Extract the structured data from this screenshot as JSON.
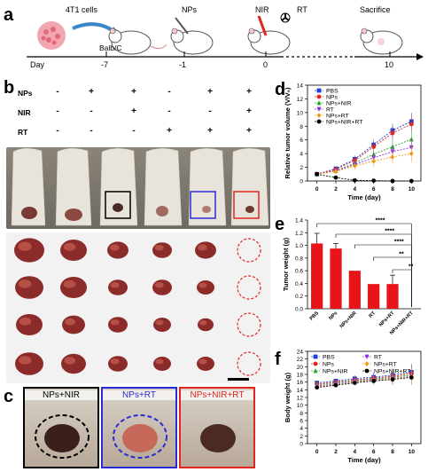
{
  "panels": {
    "a": "a",
    "b": "b",
    "c": "c",
    "d": "d",
    "e": "e",
    "f": "f"
  },
  "timeline": {
    "cells_label": "4T1 cells",
    "nps_label": "NPs",
    "nir_label": "NIR",
    "rt_label": "RT",
    "mouse_label": "Balb/C",
    "sacrifice_label": "Sacrifice",
    "day_label": "Day",
    "days": [
      "-7",
      "-1",
      "0",
      "10"
    ]
  },
  "treatment_table": {
    "rows": [
      {
        "name": "NPs",
        "signs": [
          "-",
          "+",
          "+",
          "-",
          "+",
          "+"
        ]
      },
      {
        "name": "NIR",
        "signs": [
          "-",
          "-",
          "+",
          "-",
          "-",
          "+"
        ]
      },
      {
        "name": "RT",
        "signs": [
          "-",
          "-",
          "-",
          "+",
          "+",
          "+"
        ]
      }
    ]
  },
  "closeups": [
    {
      "label": "NPs+NIR",
      "color": "#000000"
    },
    {
      "label": "NPs+RT",
      "color": "#2b2bd6"
    },
    {
      "label": "NPs+NIR+RT",
      "color": "#e0261f"
    }
  ],
  "chart_data": [
    {
      "type": "line",
      "panel": "d",
      "xlabel": "Time (day)",
      "ylabel": "Relative tumor volume (V/V₀)",
      "x": [
        0,
        2,
        4,
        6,
        8,
        10
      ],
      "xlim": [
        -1,
        11
      ],
      "ylim": [
        0,
        14
      ],
      "yticks": [
        0,
        2,
        4,
        6,
        8,
        10,
        12,
        14
      ],
      "series": [
        {
          "name": "PBS",
          "color": "#1f3fd6",
          "marker": "square",
          "values": [
            1,
            1.8,
            3.2,
            5.3,
            7.4,
            8.7
          ]
        },
        {
          "name": "NPs",
          "color": "#e0261f",
          "marker": "circle",
          "values": [
            1,
            1.7,
            3.0,
            5.0,
            7.0,
            8.3
          ]
        },
        {
          "name": "NPs+NIR",
          "color": "#2aa52a",
          "marker": "triangle",
          "values": [
            1,
            1.5,
            2.6,
            3.9,
            5.0,
            6.1
          ]
        },
        {
          "name": "RT",
          "color": "#8a2be2",
          "marker": "triangle-down",
          "values": [
            1,
            1.5,
            2.4,
            3.4,
            4.3,
            4.9
          ]
        },
        {
          "name": "NPs+RT",
          "color": "#f39c12",
          "marker": "diamond",
          "values": [
            1,
            1.4,
            2.2,
            2.9,
            3.5,
            4.0
          ]
        },
        {
          "name": "NPs+NIR+RT",
          "color": "#000000",
          "marker": "circle",
          "values": [
            1,
            0.5,
            0.1,
            0.05,
            0,
            0
          ]
        }
      ]
    },
    {
      "type": "bar",
      "panel": "e",
      "ylabel": "Tumor weight (g)",
      "categories": [
        "PBS",
        "NPs",
        "NPs+NIR",
        "RT",
        "NPs+RT",
        "NPs+NIR+RT"
      ],
      "values": [
        1.03,
        0.95,
        0.6,
        0.39,
        0.39,
        0
      ],
      "errors": [
        0.16,
        0.08,
        0.0,
        0.0,
        0.14,
        0
      ],
      "ylim": [
        0,
        1.4
      ],
      "yticks": [
        0,
        0.2,
        0.4,
        0.6,
        0.8,
        1.0,
        1.2,
        1.4
      ],
      "bar_color": "#e8141a",
      "significance": [
        "****",
        "****",
        "****",
        "**",
        "**"
      ]
    },
    {
      "type": "line",
      "panel": "f",
      "xlabel": "Time (day)",
      "ylabel": "Body weight (g)",
      "x": [
        0,
        2,
        4,
        6,
        8,
        10
      ],
      "xlim": [
        -1,
        11
      ],
      "ylim": [
        0,
        24
      ],
      "yticks": [
        0,
        2,
        4,
        6,
        8,
        10,
        12,
        14,
        16,
        18,
        20,
        22,
        24
      ],
      "series": [
        {
          "name": "PBS",
          "color": "#1f3fd6",
          "marker": "square",
          "values": [
            15.8,
            16.3,
            16.9,
            17.3,
            17.8,
            18.6
          ]
        },
        {
          "name": "NPs",
          "color": "#e0261f",
          "marker": "circle",
          "values": [
            15.5,
            16.0,
            16.6,
            17.0,
            17.5,
            18.2
          ]
        },
        {
          "name": "NPs+NIR",
          "color": "#2aa52a",
          "marker": "triangle",
          "values": [
            15.3,
            15.8,
            16.4,
            16.8,
            17.3,
            17.8
          ]
        },
        {
          "name": "RT",
          "color": "#8a2be2",
          "marker": "triangle-down",
          "values": [
            15.0,
            15.5,
            16.2,
            16.6,
            17.0,
            17.5
          ]
        },
        {
          "name": "NPs+RT",
          "color": "#f39c12",
          "marker": "diamond",
          "values": [
            14.8,
            15.3,
            16.0,
            16.5,
            16.9,
            17.4
          ]
        },
        {
          "name": "NPs+NIR+RT",
          "color": "#000000",
          "marker": "circle",
          "values": [
            14.6,
            15.2,
            15.8,
            16.3,
            16.7,
            17.2
          ]
        }
      ]
    }
  ]
}
